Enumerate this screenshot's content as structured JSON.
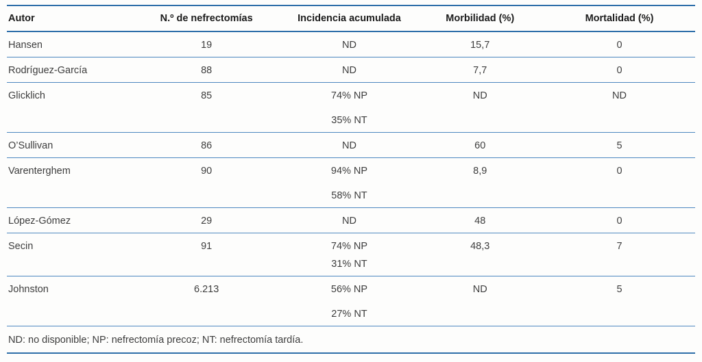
{
  "page": {
    "background": "#fdfdfc"
  },
  "colors": {
    "rule_strong": "#2d6ea9",
    "rule_light": "#4b86bf",
    "header_text": "#1c1c1c",
    "body_text": "#3d3d3d"
  },
  "table": {
    "columns": [
      {
        "label": "Autor",
        "align": "left"
      },
      {
        "label": "N.º de nefrectomías",
        "align": "center"
      },
      {
        "label": "Incidencia acumulada",
        "align": "center"
      },
      {
        "label": "Morbilidad (%)",
        "align": "center"
      },
      {
        "label": "Mortalidad (%)",
        "align": "center"
      }
    ],
    "rows": [
      {
        "autor": "Hansen",
        "nefrectomias": "19",
        "incidencia": [
          "ND"
        ],
        "morbilidad": "15,7",
        "mortalidad": "0",
        "line_gap": "none"
      },
      {
        "autor": "Rodríguez-García",
        "nefrectomias": "88",
        "incidencia": [
          "ND"
        ],
        "morbilidad": "7,7",
        "mortalidad": "0",
        "line_gap": "none"
      },
      {
        "autor": "Glicklich",
        "nefrectomias": "85",
        "incidencia": [
          "74% NP",
          "35% NT"
        ],
        "morbilidad": "ND",
        "mortalidad": "ND",
        "line_gap": "wide"
      },
      {
        "autor": "O’Sullivan",
        "nefrectomias": "86",
        "incidencia": [
          "ND"
        ],
        "morbilidad": "60",
        "mortalidad": "5",
        "line_gap": "none"
      },
      {
        "autor": "Varenterghem",
        "nefrectomias": "90",
        "incidencia": [
          "94% NP",
          "58% NT"
        ],
        "morbilidad": "8,9",
        "mortalidad": "0",
        "line_gap": "wide"
      },
      {
        "autor": "López-Gómez",
        "nefrectomias": "29",
        "incidencia": [
          "ND"
        ],
        "morbilidad": "48",
        "mortalidad": "0",
        "line_gap": "none"
      },
      {
        "autor": "Secin",
        "nefrectomias": "91",
        "incidencia": [
          "74% NP",
          "31% NT"
        ],
        "morbilidad": "48,3",
        "mortalidad": "7",
        "line_gap": "narrow"
      },
      {
        "autor": "Johnston",
        "nefrectomias": "6.213",
        "incidencia": [
          "56% NP",
          "27% NT"
        ],
        "morbilidad": "ND",
        "mortalidad": "5",
        "line_gap": "wide"
      }
    ],
    "footnote": "ND: no disponible; NP: nefrectomía precoz; NT: nefrectomía tardía."
  }
}
